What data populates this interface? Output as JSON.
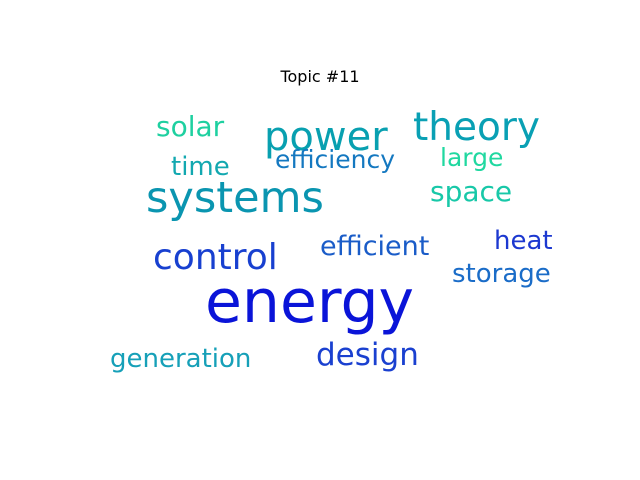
{
  "title": "Topic #11",
  "words": [
    {
      "text": "energy",
      "color": "#0a14d8"
    },
    {
      "text": "systems",
      "color": "#0a95b0"
    },
    {
      "text": "power",
      "color": "#08a0b0"
    },
    {
      "text": "theory",
      "color": "#09a0b4"
    },
    {
      "text": "control",
      "color": "#1840d0"
    },
    {
      "text": "design",
      "color": "#1a40d0"
    },
    {
      "text": "solar",
      "color": "#1ed0a0"
    },
    {
      "text": "efficiency",
      "color": "#1478c0"
    },
    {
      "text": "large",
      "color": "#20d8a0"
    },
    {
      "text": "time",
      "color": "#12a8b0"
    },
    {
      "text": "space",
      "color": "#18c8a8"
    },
    {
      "text": "efficient",
      "color": "#1a5cc8"
    },
    {
      "text": "heat",
      "color": "#1c38d0"
    },
    {
      "text": "storage",
      "color": "#1a6cc8"
    },
    {
      "text": "generation",
      "color": "#16a0b8"
    }
  ]
}
